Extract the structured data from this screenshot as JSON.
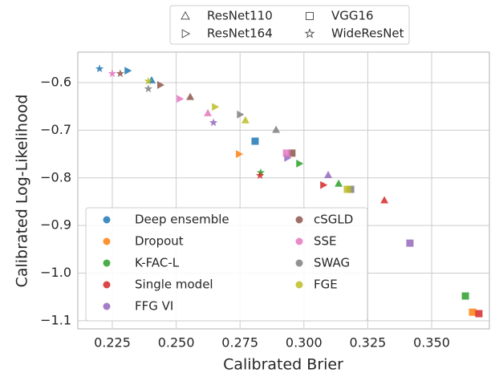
{
  "chart_data": {
    "type": "scatter",
    "xlabel": "Calibrated Brier",
    "ylabel": "Calibrated Log-Likelihood",
    "xlim": [
      0.2115,
      0.3726
    ],
    "ylim": [
      -1.117,
      -0.536
    ],
    "xticks": [
      0.225,
      {
        "value": 0.25,
        "label": "0.250"
      },
      0.275,
      {
        "value": 0.3,
        "label": "0.300"
      },
      0.325,
      {
        "value": 0.35,
        "label": "0.350"
      }
    ],
    "yticks": [
      {
        "value": -0.6,
        "label": "−0.6"
      },
      {
        "value": -0.7,
        "label": "−0.7"
      },
      {
        "value": -0.8,
        "label": "−0.8"
      },
      {
        "value": -0.9,
        "label": "−0.9"
      },
      {
        "value": -1.0,
        "label": "−1.0"
      },
      {
        "value": -1.1,
        "label": "−1.1"
      }
    ],
    "grid": true,
    "markers": [
      {
        "name": "ResNet110",
        "marker": "triangle-up"
      },
      {
        "name": "VGG16",
        "marker": "square"
      },
      {
        "name": "ResNet164",
        "marker": "triangle-right"
      },
      {
        "name": "WideResNet",
        "marker": "star"
      }
    ],
    "series": [
      {
        "name": "Deep ensemble",
        "color": "#1f77b4",
        "points": [
          {
            "arch": "WideResNet",
            "x": 0.22,
            "y": -0.571
          },
          {
            "arch": "ResNet164",
            "x": 0.231,
            "y": -0.575
          },
          {
            "arch": "ResNet110",
            "x": 0.2404,
            "y": -0.595
          },
          {
            "arch": "VGG16",
            "x": 0.2809,
            "y": -0.723
          }
        ]
      },
      {
        "name": "Dropout",
        "color": "#ff7f0e",
        "points": [
          {
            "arch": "ResNet164",
            "x": 0.2746,
            "y": -0.75
          },
          {
            "arch": "VGG16",
            "x": 0.366,
            "y": -1.082
          }
        ]
      },
      {
        "name": "K-FAC-L",
        "color": "#2ca02c",
        "points": [
          {
            "arch": "VGG16",
            "x": 0.3632,
            "y": -1.048
          },
          {
            "arch": "ResNet164",
            "x": 0.2982,
            "y": -0.77
          },
          {
            "arch": "ResNet110",
            "x": 0.3136,
            "y": -0.812
          },
          {
            "arch": "WideResNet",
            "x": 0.2831,
            "y": -0.789
          }
        ]
      },
      {
        "name": "Single model",
        "color": "#d62728",
        "points": [
          {
            "arch": "VGG16",
            "x": 0.3685,
            "y": -1.085
          },
          {
            "arch": "ResNet110",
            "x": 0.3315,
            "y": -0.847
          },
          {
            "arch": "ResNet164",
            "x": 0.3076,
            "y": -0.815
          },
          {
            "arch": "WideResNet",
            "x": 0.2828,
            "y": -0.795
          }
        ]
      },
      {
        "name": "FFG VI",
        "color": "#9467bd",
        "points": [
          {
            "arch": "VGG16",
            "x": 0.3415,
            "y": -0.937
          },
          {
            "arch": "ResNet110",
            "x": 0.3095,
            "y": -0.794
          },
          {
            "arch": "ResNet164",
            "x": 0.2935,
            "y": -0.758
          },
          {
            "arch": "WideResNet",
            "x": 0.2646,
            "y": -0.684
          }
        ]
      },
      {
        "name": "cSGLD",
        "color": "#8c564b",
        "points": [
          {
            "arch": "VGG16",
            "x": 0.2953,
            "y": -0.748
          },
          {
            "arch": "ResNet110",
            "x": 0.2555,
            "y": -0.63
          },
          {
            "arch": "ResNet164",
            "x": 0.2438,
            "y": -0.605
          },
          {
            "arch": "WideResNet",
            "x": 0.2281,
            "y": -0.581
          }
        ]
      },
      {
        "name": "SSE",
        "color": "#e377c2",
        "points": [
          {
            "arch": "VGG16",
            "x": 0.2932,
            "y": -0.748
          },
          {
            "arch": "ResNet110",
            "x": 0.2624,
            "y": -0.664
          },
          {
            "arch": "ResNet164",
            "x": 0.2514,
            "y": -0.634
          },
          {
            "arch": "WideResNet",
            "x": 0.225,
            "y": -0.581
          }
        ]
      },
      {
        "name": "SWAG",
        "color": "#7f7f7f",
        "points": [
          {
            "arch": "VGG16",
            "x": 0.3183,
            "y": -0.824
          },
          {
            "arch": "ResNet110",
            "x": 0.2891,
            "y": -0.699
          },
          {
            "arch": "ResNet164",
            "x": 0.275,
            "y": -0.667
          },
          {
            "arch": "WideResNet",
            "x": 0.2391,
            "y": -0.613
          }
        ]
      },
      {
        "name": "FGE",
        "color": "#bcbd22",
        "points": [
          {
            "arch": "VGG16",
            "x": 0.317,
            "y": -0.824
          },
          {
            "arch": "ResNet110",
            "x": 0.2771,
            "y": -0.679
          },
          {
            "arch": "ResNet164",
            "x": 0.2652,
            "y": -0.651
          },
          {
            "arch": "WideResNet",
            "x": 0.2391,
            "y": -0.597
          }
        ]
      }
    ]
  }
}
